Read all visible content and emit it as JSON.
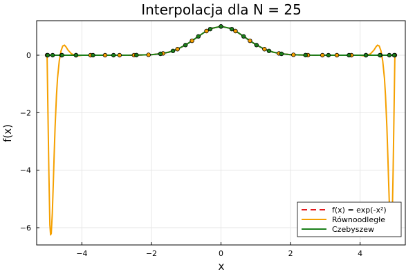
{
  "chart_data": {
    "type": "line",
    "title": "Interpolacja dla N = 25",
    "xlabel": "x",
    "ylabel": "f(x)",
    "xlim": [
      -5.3,
      5.3
    ],
    "ylim": [
      -6.6,
      1.2
    ],
    "xticks": [
      -4,
      -2,
      0,
      2,
      4
    ],
    "xtick_labels": [
      "−4",
      "−2",
      "0",
      "2",
      "4"
    ],
    "yticks": [
      -6,
      -4,
      -2,
      0
    ],
    "ytick_labels": [
      "−6",
      "−4",
      "−2",
      "0"
    ],
    "grid": true,
    "legend_position": "bottom-right",
    "series": [
      {
        "name": "f(x) = exp(-x²)",
        "color": "#e41a1c",
        "style": "dashed",
        "x": [
          -5.0,
          -4.5,
          -4.0,
          -3.5,
          -3.0,
          -2.5,
          -2.0,
          -1.75,
          -1.5,
          -1.25,
          -1.0,
          -0.75,
          -0.5,
          -0.25,
          0.0,
          0.25,
          0.5,
          0.75,
          1.0,
          1.25,
          1.5,
          1.75,
          2.0,
          2.5,
          3.0,
          3.5,
          4.0,
          4.5,
          5.0
        ],
        "y": [
          0.0,
          0.0,
          0.0,
          0.0,
          0.0,
          0.002,
          0.018,
          0.047,
          0.105,
          0.21,
          0.368,
          0.57,
          0.779,
          0.939,
          1.0,
          0.939,
          0.779,
          0.57,
          0.368,
          0.21,
          0.105,
          0.047,
          0.018,
          0.002,
          0.0,
          0.0,
          0.0,
          0.0,
          0.0
        ]
      },
      {
        "name": "Równoodległe",
        "color": "#f5a000",
        "style": "solid",
        "x": [
          -5.0,
          -4.98,
          -4.95,
          -4.92,
          -4.9,
          -4.88,
          -4.85,
          -4.82,
          -4.8,
          -4.77,
          -4.73,
          -4.7,
          -4.65,
          -4.6,
          -4.55,
          -4.5,
          -4.45,
          -4.4,
          -4.3,
          -4.2,
          -4.1,
          -4.0,
          -3.5,
          -3.0,
          -2.5,
          -2.0,
          -1.75,
          -1.5,
          -1.25,
          -1.0,
          -0.75,
          -0.5,
          -0.25,
          0.0,
          0.25,
          0.5,
          0.75,
          1.0,
          1.25,
          1.5,
          1.75,
          2.0,
          2.5,
          3.0,
          3.5,
          4.0,
          4.1,
          4.2,
          4.3,
          4.4,
          4.45,
          4.5,
          4.55,
          4.6,
          4.65,
          4.7,
          4.73,
          4.77,
          4.8,
          4.82,
          4.85,
          4.88,
          4.9,
          4.92,
          4.95,
          4.98,
          5.0
        ],
        "y": [
          0.0,
          -1.6,
          -4.0,
          -5.9,
          -6.25,
          -6.2,
          -5.5,
          -4.4,
          -3.6,
          -2.5,
          -1.4,
          -0.8,
          -0.2,
          0.15,
          0.32,
          0.35,
          0.28,
          0.18,
          0.05,
          0.0,
          -0.02,
          0.0,
          0.0,
          0.0,
          0.002,
          0.018,
          0.047,
          0.105,
          0.21,
          0.368,
          0.57,
          0.779,
          0.939,
          1.0,
          0.939,
          0.779,
          0.57,
          0.368,
          0.21,
          0.105,
          0.047,
          0.018,
          0.002,
          0.0,
          0.0,
          0.0,
          -0.02,
          0.0,
          0.05,
          0.18,
          0.28,
          0.35,
          0.32,
          0.15,
          -0.2,
          -0.8,
          -1.4,
          -2.5,
          -3.6,
          -4.4,
          -5.5,
          -6.2,
          -6.25,
          -5.9,
          -4.0,
          -1.6,
          0.0
        ]
      },
      {
        "name": "Czebyszew",
        "color": "#1a7f1a",
        "style": "solid",
        "x": [
          -5.0,
          -4.5,
          -4.0,
          -3.5,
          -3.0,
          -2.5,
          -2.0,
          -1.75,
          -1.5,
          -1.25,
          -1.0,
          -0.75,
          -0.5,
          -0.25,
          0.0,
          0.25,
          0.5,
          0.75,
          1.0,
          1.25,
          1.5,
          1.75,
          2.0,
          2.5,
          3.0,
          3.5,
          4.0,
          4.5,
          5.0
        ],
        "y": [
          0.0,
          0.0,
          0.0,
          0.0,
          0.0,
          0.002,
          0.018,
          0.047,
          0.105,
          0.21,
          0.368,
          0.57,
          0.779,
          0.939,
          1.0,
          0.939,
          0.779,
          0.57,
          0.368,
          0.21,
          0.105,
          0.047,
          0.018,
          0.002,
          0.0,
          0.0,
          0.0,
          0.0,
          0.0
        ]
      }
    ],
    "node_series": [
      {
        "name": "Równoodległe",
        "color": "#f5a000",
        "x": [
          -5.0,
          -4.583,
          -4.167,
          -3.75,
          -3.333,
          -2.917,
          -2.5,
          -2.083,
          -1.667,
          -1.25,
          -0.833,
          -0.417,
          0.0,
          0.417,
          0.833,
          1.25,
          1.667,
          2.083,
          2.5,
          2.917,
          3.333,
          3.75,
          4.167,
          4.583,
          5.0
        ],
        "y": [
          0.0,
          0.0,
          0.0,
          0.0,
          0.0,
          0.0,
          0.002,
          0.013,
          0.062,
          0.21,
          0.5,
          0.84,
          1.0,
          0.84,
          0.5,
          0.21,
          0.062,
          0.013,
          0.002,
          0.0,
          0.0,
          0.0,
          0.0,
          0.0,
          0.0
        ]
      },
      {
        "name": "Czebyszew",
        "color": "#1a7f1a",
        "x": [
          -4.98,
          -4.84,
          -4.57,
          -4.17,
          -3.68,
          -3.09,
          -2.43,
          -1.74,
          -1.02,
          -0.31,
          0.31,
          1.02,
          1.74,
          2.43,
          3.09,
          3.68,
          4.17,
          4.57,
          4.84,
          4.98,
          -0.65,
          0.65,
          -1.38,
          1.38,
          0.0
        ],
        "y": [
          0.0,
          0.0,
          0.0,
          0.0,
          0.0,
          0.0,
          0.003,
          0.048,
          0.353,
          0.908,
          0.908,
          0.353,
          0.048,
          0.003,
          0.0,
          0.0,
          0.0,
          0.0,
          0.0,
          0.0,
          0.655,
          0.655,
          0.149,
          0.149,
          1.0
        ]
      }
    ]
  }
}
